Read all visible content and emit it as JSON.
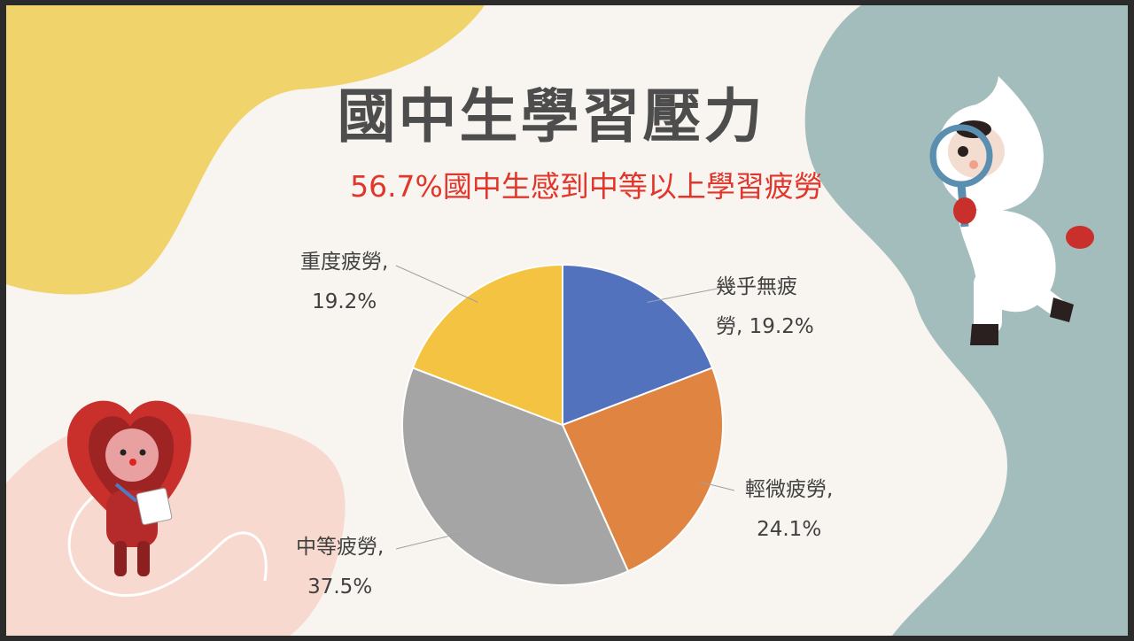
{
  "slide": {
    "title": "國中生學習壓力",
    "subtitle": "56.7%國中生感到中等以上學習疲勞"
  },
  "colors": {
    "slide_bg": "#f8f4ef",
    "blob_yellow": "#f0d36a",
    "blob_teal": "#a3bdbd",
    "blob_pink": "#f7d9cf",
    "subtitle_red": "#e0362c"
  },
  "chart_data": {
    "type": "pie",
    "title": "",
    "slices": [
      {
        "name": "幾乎無疲勞",
        "value": 19.2,
        "label_line1": "幾乎無疲",
        "label_line2": "勞, 19.2%",
        "color": "#5372be"
      },
      {
        "name": "輕微疲勞",
        "value": 24.1,
        "label_line1": "輕微疲勞,",
        "label_line2": "24.1%",
        "color": "#e08442"
      },
      {
        "name": "中等疲勞",
        "value": 37.5,
        "label_line1": "中等疲勞,",
        "label_line2": "37.5%",
        "color": "#a5a5a5"
      },
      {
        "name": "重度疲勞",
        "value": 19.2,
        "label_line1": "重度疲勞,",
        "label_line2": "19.2%",
        "color": "#f5c342"
      }
    ],
    "start_angle": "12 o'clock, clockwise",
    "legend": "none"
  },
  "illustrations": {
    "heart_character": "heart-mascot",
    "explorer_character": "white-explorer-mascot"
  }
}
